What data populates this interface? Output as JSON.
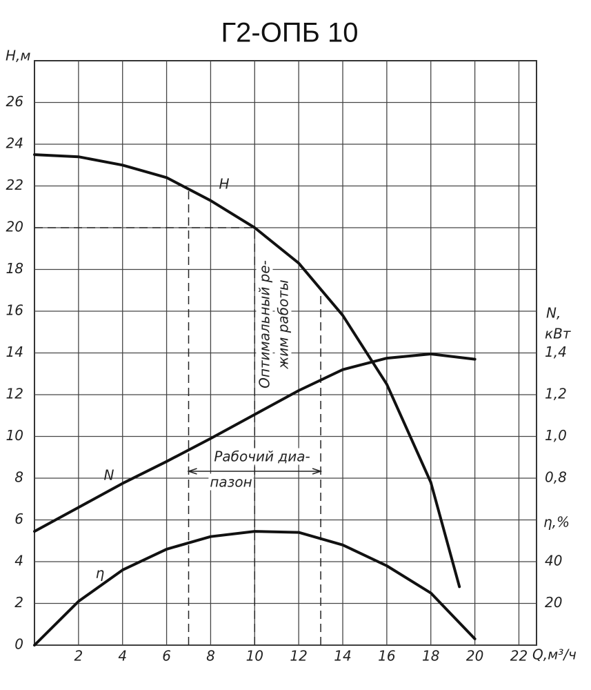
{
  "chart_data": {
    "type": "line",
    "title": "Г2-ОПБ 10",
    "x_label": "Q,м³/ч",
    "y_label": "H,м",
    "y2_label": [
      "N,",
      "кВт"
    ],
    "y3_label": "η,%",
    "xlim": [
      0,
      22.8
    ],
    "xticks": [
      2,
      4,
      6,
      8,
      10,
      12,
      14,
      16,
      18,
      20,
      22
    ],
    "ylim": [
      0,
      28
    ],
    "yticks": [
      0,
      2,
      4,
      6,
      8,
      10,
      12,
      14,
      16,
      18,
      20,
      22,
      24,
      26
    ],
    "y2lim": [
      0,
      2.8
    ],
    "y2ticks": [
      {
        "value": 0.8,
        "label": "0,8"
      },
      {
        "value": 1.0,
        "label": "1,0"
      },
      {
        "value": 1.2,
        "label": "1,2"
      },
      {
        "value": 1.4,
        "label": "1,4"
      }
    ],
    "y3lim": [
      0,
      280
    ],
    "y3ticks": [
      20,
      40
    ],
    "grid": true,
    "color": "#111111",
    "series": [
      {
        "name": "H",
        "axis": "y",
        "x": [
          0,
          2,
          4,
          6,
          8,
          10,
          12,
          14,
          16,
          18,
          19.3
        ],
        "values": [
          23.5,
          23.4,
          23.0,
          22.4,
          21.3,
          20.0,
          18.3,
          15.8,
          12.5,
          7.8,
          2.8
        ]
      },
      {
        "name": "N",
        "axis": "y2",
        "x": [
          0,
          2,
          4,
          6,
          8,
          10,
          12,
          14,
          16,
          18,
          20
        ],
        "values": [
          0.545,
          0.66,
          0.775,
          0.88,
          0.99,
          1.105,
          1.22,
          1.32,
          1.375,
          1.395,
          1.37
        ]
      },
      {
        "name": "η",
        "axis": "y3",
        "x": [
          0,
          2,
          4,
          6,
          8,
          10,
          12,
          14,
          16,
          18,
          20
        ],
        "values": [
          0,
          21,
          36,
          46,
          52,
          54.5,
          54,
          48,
          38,
          25,
          3
        ]
      }
    ],
    "optimal_q": 10,
    "optimal_h": 20,
    "working_range": [
      7,
      13
    ],
    "annotations": [
      "Оптимальный ре-",
      "жим работы",
      "Рабочий диа-",
      "пазон"
    ]
  }
}
